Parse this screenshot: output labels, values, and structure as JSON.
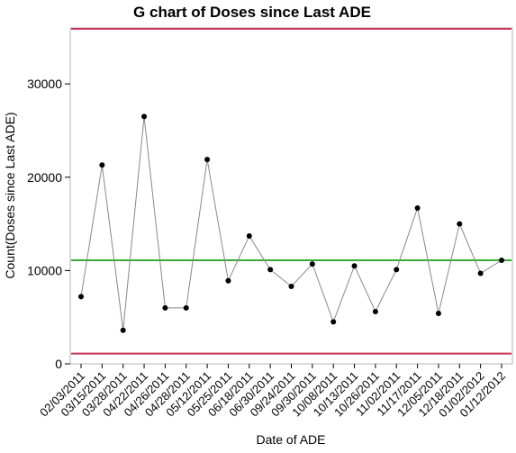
{
  "chart_data": {
    "type": "line",
    "title": "G chart of Doses since Last ADE",
    "xlabel": "Date of ADE",
    "ylabel": "Count(Doses since Last ADE)",
    "ylim": [
      0,
      36000
    ],
    "yticks": [
      0,
      10000,
      20000,
      30000
    ],
    "categories": [
      "02/03/2011",
      "03/15/2011",
      "03/28/2011",
      "04/22/2011",
      "04/26/2011",
      "04/28/2011",
      "05/12/2011",
      "05/25/2011",
      "06/18/2011",
      "06/30/2011",
      "09/24/2011",
      "09/30/2011",
      "10/08/2011",
      "10/13/2011",
      "10/26/2011",
      "11/02/2011",
      "11/17/2011",
      "12/05/2011",
      "12/18/2011",
      "01/02/2012",
      "01/12/2012"
    ],
    "series": [
      {
        "values": [
          7200,
          21300,
          3600,
          26500,
          6000,
          6000,
          21900,
          8900,
          13700,
          10100,
          8300,
          10700,
          4500,
          10500,
          5600,
          10100,
          16700,
          5400,
          15000,
          9700,
          11100
        ]
      }
    ],
    "control_limits": {
      "ucl": 35900,
      "center": 11100,
      "lcl": 1100
    },
    "colors": {
      "line": "#888888",
      "marker": "#000000",
      "center_line": "#3aaa35",
      "limit_line": "#cc3355",
      "frame": "#b3b3b3"
    },
    "grid": false,
    "legend": "none"
  }
}
